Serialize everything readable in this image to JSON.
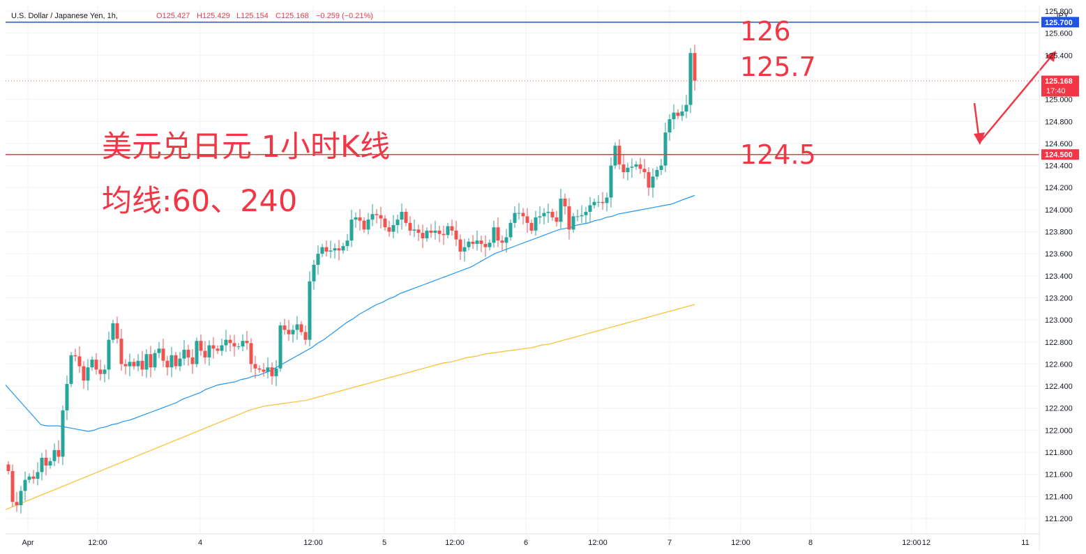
{
  "header": {
    "symbol": "U.S. Dollar / Japanese Yen, 1h,",
    "open": "O125.427",
    "high": "H125.429",
    "low": "L125.154",
    "close": "C125.168",
    "change": "−0.259 (−0.21%)"
  },
  "price_axis": {
    "currency": "JPY",
    "ticks": [
      "125.800",
      "125.600",
      "125.400",
      "125.000",
      "124.800",
      "124.600",
      "124.400",
      "124.200",
      "124.000",
      "123.800",
      "123.600",
      "123.400",
      "123.200",
      "123.000",
      "122.800",
      "122.600",
      "122.400",
      "122.200",
      "122.000",
      "121.800",
      "121.600",
      "121.400",
      "121.200"
    ],
    "tick_values": [
      125.8,
      125.6,
      125.4,
      125.0,
      124.8,
      124.6,
      124.4,
      124.2,
      124.0,
      123.8,
      123.6,
      123.4,
      123.2,
      123.0,
      122.8,
      122.6,
      122.4,
      122.2,
      122.0,
      121.8,
      121.6,
      121.4,
      121.2
    ],
    "labels": {
      "resistance": "125.700",
      "last_price": "125.168",
      "countdown": "17:40",
      "support": "124.500"
    }
  },
  "time_axis": {
    "labels": [
      "Apr",
      "12:00",
      "4",
      "12:00",
      "5",
      "12:00",
      "6",
      "12:00",
      "7",
      "12:00",
      "8",
      "12:00",
      "11",
      "12"
    ]
  },
  "annotations": {
    "title": "美元兑日元 1小时K线",
    "ma_note": "均线:60、240",
    "level_126": "126",
    "level_125_7": "125.7",
    "level_124_5": "124.5"
  },
  "colors": {
    "up": "#26a69a",
    "down": "#ef5350",
    "ma60": "#2196f3",
    "ma240": "#fbc02d",
    "resistance_line": "#1e53e5",
    "support_line": "#f23645",
    "annotation": "#f23645"
  },
  "chart_data": {
    "type": "candlestick",
    "title": "美元兑日元 1小时K线",
    "ylabel": "JPY",
    "ylim": [
      121.15,
      125.98
    ],
    "x_session_labels": [
      "Apr",
      "12:00",
      "4",
      "12:00",
      "5",
      "12:00",
      "6",
      "12:00",
      "7",
      "12:00",
      "8",
      "12:00",
      "11",
      "12"
    ],
    "closes": [
      121.63,
      121.35,
      121.32,
      121.45,
      121.55,
      121.58,
      121.56,
      121.62,
      121.75,
      121.68,
      121.72,
      121.82,
      121.76,
      122.18,
      122.42,
      122.68,
      122.67,
      122.58,
      122.45,
      122.57,
      122.64,
      122.55,
      122.51,
      122.55,
      122.82,
      122.97,
      122.83,
      122.6,
      122.58,
      122.62,
      122.58,
      122.63,
      122.55,
      122.69,
      122.57,
      122.7,
      122.74,
      122.63,
      122.57,
      122.68,
      122.58,
      122.65,
      122.73,
      122.66,
      122.6,
      122.81,
      122.72,
      122.66,
      122.77,
      122.74,
      122.72,
      122.77,
      122.82,
      122.79,
      122.76,
      122.76,
      122.81,
      122.79,
      122.6,
      122.56,
      122.55,
      122.53,
      122.57,
      122.49,
      122.56,
      122.95,
      122.91,
      122.87,
      122.91,
      122.96,
      122.89,
      122.82,
      123.35,
      123.5,
      123.6,
      123.66,
      123.62,
      123.63,
      123.65,
      123.63,
      123.67,
      123.72,
      123.91,
      123.93,
      123.9,
      123.82,
      123.91,
      123.96,
      123.95,
      123.92,
      123.84,
      123.8,
      123.86,
      123.91,
      123.98,
      123.88,
      123.81,
      123.82,
      123.79,
      123.74,
      123.81,
      123.79,
      123.81,
      123.78,
      123.77,
      123.85,
      123.81,
      123.73,
      123.62,
      123.66,
      123.71,
      123.69,
      123.72,
      123.69,
      123.66,
      123.7,
      123.84,
      123.72,
      123.7,
      123.75,
      123.88,
      123.97,
      123.97,
      123.94,
      123.88,
      123.81,
      123.93,
      123.94,
      123.97,
      123.98,
      123.93,
      123.89,
      124.1,
      124.03,
      123.82,
      123.94,
      123.94,
      123.95,
      123.98,
      124.04,
      124.07,
      124.07,
      124.06,
      124.11,
      124.4,
      124.58,
      124.41,
      124.34,
      124.38,
      124.39,
      124.41,
      124.37,
      124.34,
      124.2,
      124.3,
      124.36,
      124.4,
      124.7,
      124.82,
      124.88,
      124.85,
      124.89,
      124.95,
      125.42,
      125.17
    ],
    "ma60": [
      122.41,
      122.35,
      122.29,
      122.23,
      122.17,
      122.11,
      122.05,
      122.04,
      122.04,
      122.04,
      122.03,
      122.02,
      122.01,
      122.0,
      121.99,
      122.0,
      122.02,
      122.03,
      122.05,
      122.06,
      122.08,
      122.09,
      122.11,
      122.13,
      122.15,
      122.17,
      122.19,
      122.21,
      122.23,
      122.25,
      122.28,
      122.3,
      122.32,
      122.34,
      122.37,
      122.39,
      122.41,
      122.42,
      122.43,
      122.44,
      122.46,
      122.47,
      122.49,
      122.5,
      122.52,
      122.54,
      122.57,
      122.6,
      122.63,
      122.66,
      122.69,
      122.72,
      122.75,
      122.79,
      122.82,
      122.86,
      122.9,
      122.94,
      122.98,
      123.01,
      123.05,
      123.08,
      123.11,
      123.14,
      123.16,
      123.19,
      123.21,
      123.24,
      123.26,
      123.28,
      123.3,
      123.32,
      123.34,
      123.36,
      123.38,
      123.4,
      123.42,
      123.44,
      123.46,
      123.48,
      123.51,
      123.54,
      123.57,
      123.6,
      123.62,
      123.64,
      123.66,
      123.68,
      123.7,
      123.72,
      123.74,
      123.76,
      123.78,
      123.8,
      123.82,
      123.83,
      123.84,
      123.86,
      123.87,
      123.88,
      123.9,
      123.91,
      123.93,
      123.94,
      123.96,
      123.97,
      123.98,
      123.99,
      124.0,
      124.01,
      124.02,
      124.03,
      124.04,
      124.05,
      124.07,
      124.09,
      124.11,
      124.13
    ],
    "ma240": [
      121.28,
      121.31,
      121.34,
      121.37,
      121.4,
      121.43,
      121.46,
      121.49,
      121.52,
      121.55,
      121.58,
      121.61,
      121.64,
      121.67,
      121.7,
      121.73,
      121.76,
      121.79,
      121.82,
      121.85,
      121.88,
      121.91,
      121.94,
      121.97,
      122.0,
      122.03,
      122.06,
      122.09,
      122.12,
      122.15,
      122.18,
      122.2,
      122.22,
      122.23,
      122.24,
      122.25,
      122.26,
      122.27,
      122.29,
      122.31,
      122.33,
      122.35,
      122.37,
      122.39,
      122.41,
      122.43,
      122.45,
      122.47,
      122.49,
      122.51,
      122.53,
      122.55,
      122.57,
      122.59,
      122.61,
      122.62,
      122.64,
      122.66,
      122.67,
      122.69,
      122.7,
      122.71,
      122.72,
      122.73,
      122.74,
      122.75,
      122.77,
      122.78,
      122.8,
      122.82,
      122.84,
      122.86,
      122.88,
      122.9,
      122.92,
      122.94,
      122.96,
      122.98,
      123.0,
      123.02,
      123.04,
      123.06,
      123.08,
      123.1,
      123.12,
      123.14
    ],
    "horizontal_levels": [
      {
        "label": "125.700",
        "value": 125.7,
        "role": "resistance"
      },
      {
        "label": "124.500",
        "value": 124.5,
        "role": "support"
      }
    ],
    "top_line_value": 125.98,
    "last_price": 125.168,
    "grid": true,
    "legend": "none"
  }
}
